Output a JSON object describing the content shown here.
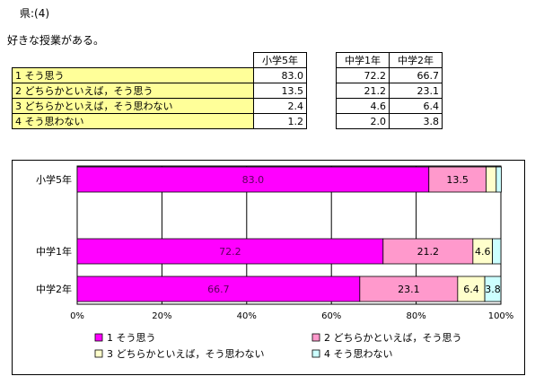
{
  "header": {
    "title": "県:(4)",
    "subtitle": "好きな授業がある。"
  },
  "table": {
    "columns": [
      "小学5年",
      "中学1年",
      "中学2年"
    ],
    "rows": [
      {
        "label": "1 そう思う",
        "values": [
          "83.0",
          "72.2",
          "66.7"
        ]
      },
      {
        "label": "2 どちらかといえば，そう思う",
        "values": [
          "13.5",
          "21.2",
          "23.1"
        ]
      },
      {
        "label": "3 どちらかといえば，そう思わない",
        "values": [
          "2.4",
          "4.6",
          "6.4"
        ]
      },
      {
        "label": "4 そう思わない",
        "values": [
          "1.2",
          "2.0",
          "3.8"
        ]
      }
    ]
  },
  "chart_data": {
    "type": "bar",
    "orientation": "horizontal",
    "stacked": true,
    "categories": [
      "小学5年",
      "中学1年",
      "中学2年"
    ],
    "series": [
      {
        "name": "1 そう思う",
        "values": [
          83.0,
          72.2,
          66.7
        ],
        "color": "#ff00ff",
        "label_color": "#5a005a"
      },
      {
        "name": "2 どちらかといえば，そう思う",
        "values": [
          13.5,
          21.2,
          23.1
        ],
        "color": "#ff99cc",
        "label_color": "#000000"
      },
      {
        "name": "3 どちらかといえば，そう思わない",
        "values": [
          2.4,
          4.6,
          6.4
        ],
        "color": "#ffffcc",
        "label_color": "#000000"
      },
      {
        "name": "4 そう思わない",
        "values": [
          1.2,
          2.0,
          3.8
        ],
        "color": "#ccffff",
        "label_color": "#000000"
      }
    ],
    "xlim": [
      0,
      100
    ],
    "xticks": [
      "0%",
      "20%",
      "40%",
      "60%",
      "80%",
      "100%"
    ],
    "grid": true,
    "legend_position": "bottom"
  }
}
